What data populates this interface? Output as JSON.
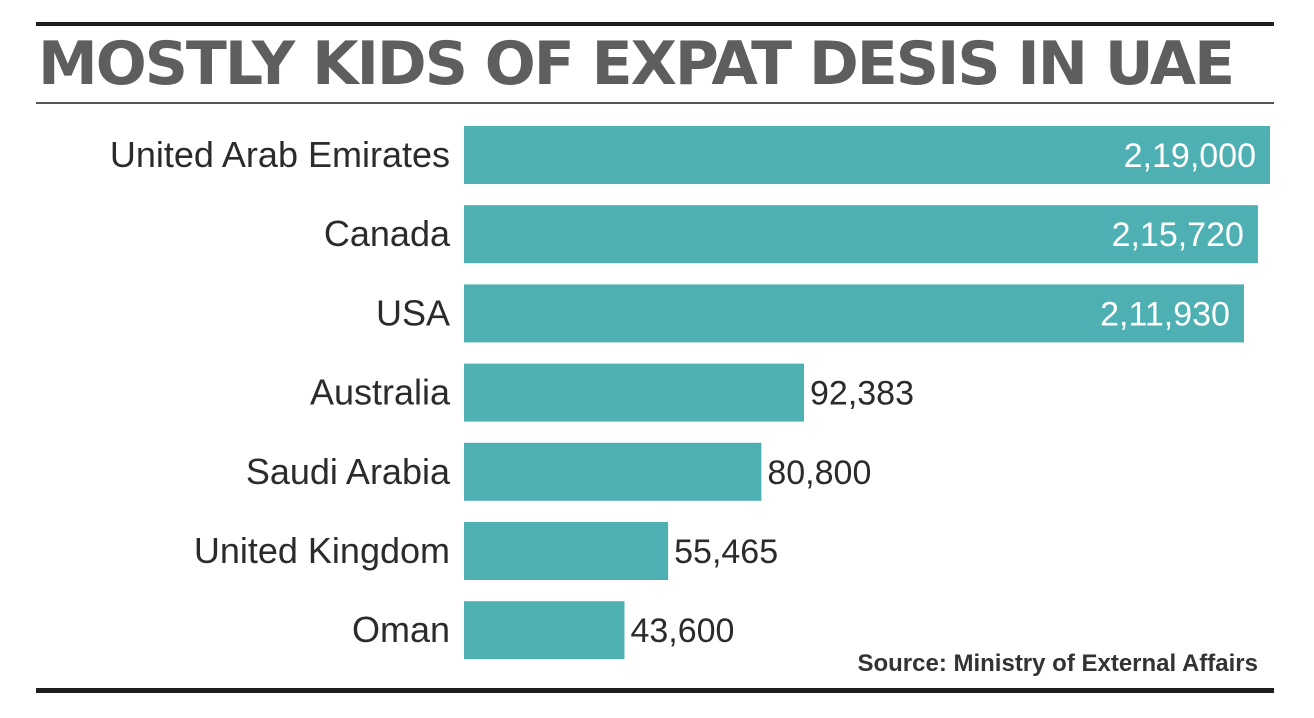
{
  "colors": {
    "bar": "#4fb0b3",
    "text": "#2b2b2b",
    "title": "#5e5e5e"
  },
  "chart_data": {
    "type": "bar",
    "orientation": "horizontal",
    "title": "MOSTLY KIDS OF EXPAT DESIS IN UAE",
    "categories": [
      "United Arab Emirates",
      "Canada",
      "USA",
      "Australia",
      "Saudi Arabia",
      "United Kingdom",
      "Oman"
    ],
    "values": [
      219000,
      215720,
      211930,
      92383,
      80800,
      55465,
      43600
    ],
    "value_labels": [
      "2,19,000",
      "2,15,720",
      "2,11,930",
      "92,383",
      "80,800",
      "55,465",
      "43,600"
    ],
    "xlim": [
      0,
      219000
    ],
    "grid": false,
    "source": "Source: Ministry of External Affairs"
  }
}
